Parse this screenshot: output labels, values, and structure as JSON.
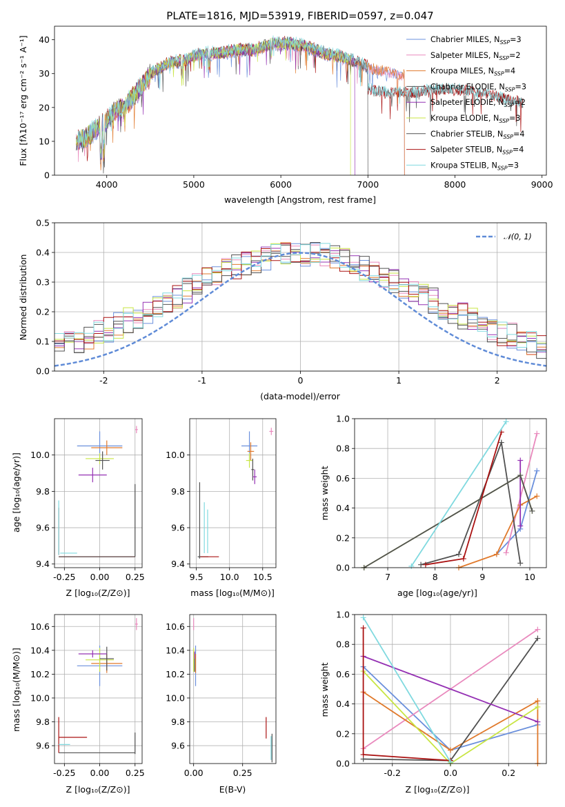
{
  "colors": [
    "#6a8fdc",
    "#e989bd",
    "#e0792b",
    "#505050",
    "#9430b3",
    "#c8e542",
    "#505050",
    "#aa1111",
    "#7fd9df"
  ],
  "spectrum": {
    "title": "PLATE=1816, MJD=53919, FIBERID=0597, z=0.047",
    "xlabel": "wavelength [Angstrom, rest frame]",
    "ylabel": "Flux [fλ10⁻¹⁷ erg cm⁻² s⁻¹ A⁻¹]"
  },
  "legend1": [
    {
      "name": "Chabrier MILES",
      "n": "3"
    },
    {
      "name": "Salpeter MILES",
      "n": "2"
    },
    {
      "name": "Kroupa MILES",
      "n": "4"
    },
    {
      "name": "Chabrier ELODIE",
      "n": "3"
    },
    {
      "name": "Salpeter ELODIE",
      "n": "2"
    },
    {
      "name": "Kroupa ELODIE",
      "n": "3"
    },
    {
      "name": "Chabrier STELIB",
      "n": "4"
    },
    {
      "name": "Salpeter STELIB",
      "n": "4"
    },
    {
      "name": "Kroupa STELIB",
      "n": "3"
    }
  ],
  "residuals": {
    "xlabel": "(data-model)/error",
    "ylabel": "Normed distribution",
    "gauss_label": "𝒩(0, 1)"
  },
  "panel_labels": {
    "age": "age  [log₁₀(age/yr)]",
    "mass": "mass [log₁₀(M/M⊙)]",
    "Z": "Z [log₁₀(Z/Z⊙)]",
    "massw": "mass weight",
    "ebv": "E(B-V)"
  },
  "chart_data": [
    {
      "type": "line",
      "title": "PLATE=1816, MJD=53919, FIBERID=0597, z=0.047",
      "xlabel": "wavelength [Angstrom, rest frame]",
      "ylabel": "Flux [fλ10⁻¹⁷ erg cm⁻² s⁻¹ A⁻¹]",
      "xlim": [
        3400,
        9050
      ],
      "ylim": [
        0,
        44
      ],
      "xticks": [
        4000,
        5000,
        6000,
        7000,
        8000,
        9000
      ],
      "yticks": [
        0,
        10,
        20,
        30,
        40
      ],
      "continuum": {
        "x": [
          3650,
          3750,
          3900,
          4000,
          4100,
          4200,
          4300,
          4400,
          4500,
          4700,
          4900,
          5100,
          5300,
          5500,
          5700,
          5900,
          6100,
          6300,
          6500,
          6700,
          6900,
          7000,
          7200,
          7400
        ],
        "y": [
          10,
          11,
          14,
          16,
          19,
          20,
          23,
          26,
          30,
          33,
          34,
          36,
          36,
          37,
          37,
          39,
          39,
          38,
          36,
          35,
          33,
          32,
          31,
          30
        ]
      },
      "cutoffs": {
        "Kroupa ELODIE": 6800,
        "Chabrier ELODIE": 7000,
        "MILES": 7420
      },
      "stelib_tail": {
        "x": [
          7000,
          7200,
          7500,
          7800,
          8000,
          8300,
          8600,
          8780
        ],
        "y": [
          25,
          24,
          24,
          25,
          25,
          24,
          22,
          21
        ]
      },
      "series": [
        {
          "name": "Chabrier MILES, N_SSP=3"
        },
        {
          "name": "Salpeter MILES, N_SSP=2"
        },
        {
          "name": "Kroupa MILES, N_SSP=4"
        },
        {
          "name": "Chabrier ELODIE, N_SSP=3"
        },
        {
          "name": "Salpeter ELODIE, N_SSP=2"
        },
        {
          "name": "Kroupa ELODIE, N_SSP=3"
        },
        {
          "name": "Chabrier STELIB, N_SSP=4"
        },
        {
          "name": "Salpeter STELIB, N_SSP=4"
        },
        {
          "name": "Kroupa STELIB, N_SSP=3"
        }
      ]
    },
    {
      "type": "area",
      "xlabel": "(data-model)/error",
      "ylabel": "Normed distribution",
      "xlim": [
        -2.5,
        2.5
      ],
      "ylim": [
        0,
        0.5
      ],
      "xticks": [
        -2,
        -1,
        0,
        1,
        2
      ],
      "yticks": [
        0.0,
        0.1,
        0.2,
        0.3,
        0.4,
        0.5
      ],
      "bins": {
        "start": -2.5,
        "width": 0.1,
        "count": 50
      },
      "gaussian": {
        "name": "N(0,1)",
        "mean": 0,
        "sigma": 1
      }
    },
    {
      "type": "scatter",
      "xlabel": "Z [log₁₀(Z/Z⊙)]",
      "ylabel": "age  [log₁₀(age/yr)]",
      "xlim": [
        -0.32,
        0.3
      ],
      "ylim": [
        9.38,
        10.2
      ],
      "xticks": [
        -0.25,
        0.0,
        0.25
      ],
      "yticks": [
        9.4,
        9.6,
        9.8,
        10.0
      ],
      "points": [
        {
          "x": 0.0,
          "xe": 0.16,
          "y": 10.05,
          "ye": 0.08,
          "s": 0
        },
        {
          "x": 0.05,
          "xe": 0.11,
          "y": 10.04,
          "ye": 0.04,
          "s": 2
        },
        {
          "x": 0.0,
          "xe": 0.1,
          "y": 9.98,
          "ye": 0.03,
          "s": 5
        },
        {
          "x": 0.02,
          "xe": 0.05,
          "y": 9.97,
          "ye": 0.05,
          "s": 3
        },
        {
          "x": -0.05,
          "xe": 0.1,
          "y": 9.89,
          "ye": 0.04,
          "s": 4
        },
        {
          "x": 0.26,
          "xe": 0.01,
          "y": 10.14,
          "ye": 0.02,
          "s": 1
        },
        {
          "x": -0.02,
          "xe": 0.27,
          "y": 9.44,
          "ye": 0.0,
          "s": 7
        },
        {
          "x": 0.25,
          "xe": 0.0,
          "y": 9.64,
          "ye": 0.2,
          "s": 6
        },
        {
          "x": -0.29,
          "xe": 0.0,
          "y": 9.58,
          "ye": 0.13,
          "s": 7
        },
        {
          "x": -0.22,
          "xe": 0.06,
          "y": 9.46,
          "ye": 0.0,
          "s": 8
        },
        {
          "x": -0.29,
          "xe": 0.0,
          "y": 9.6,
          "ye": 0.15,
          "s": 8
        },
        {
          "x": -0.02,
          "xe": 0.27,
          "y": 9.44,
          "ye": 0.0,
          "s": 3
        }
      ]
    },
    {
      "type": "scatter",
      "xlabel": "mass [log₁₀(M/M⊙)]",
      "xlim": [
        9.4,
        10.7
      ],
      "ylim": [
        9.38,
        10.2
      ],
      "xticks": [
        9.5,
        10.0,
        10.5
      ],
      "yticks": [
        9.4,
        9.6,
        9.8,
        10.0
      ],
      "points": [
        {
          "x": 10.3,
          "xe": 0.12,
          "y": 10.05,
          "ye": 0.08,
          "s": 0
        },
        {
          "x": 10.32,
          "xe": 0.05,
          "y": 10.02,
          "ye": 0.05,
          "s": 2
        },
        {
          "x": 10.3,
          "xe": 0.05,
          "y": 9.97,
          "ye": 0.04,
          "s": 5
        },
        {
          "x": 10.35,
          "xe": 0.02,
          "y": 9.92,
          "ye": 0.06,
          "s": 3
        },
        {
          "x": 10.38,
          "xe": 0.03,
          "y": 9.88,
          "ye": 0.04,
          "s": 4
        },
        {
          "x": 10.63,
          "xe": 0.03,
          "y": 10.13,
          "ye": 0.02,
          "s": 1
        },
        {
          "x": 9.55,
          "xe": 0.0,
          "y": 9.64,
          "ye": 0.21,
          "s": 3
        },
        {
          "x": 9.6,
          "xe": 0.08,
          "y": 9.44,
          "ye": 0.0,
          "s": 6
        },
        {
          "x": 9.67,
          "xe": 0.0,
          "y": 9.58,
          "ye": 0.12,
          "s": 8
        },
        {
          "x": 9.7,
          "xe": 0.14,
          "y": 9.44,
          "ye": 0.0,
          "s": 7
        },
        {
          "x": 9.62,
          "xe": 0.0,
          "y": 9.6,
          "ye": 0.14,
          "s": 8
        }
      ]
    },
    {
      "type": "line",
      "xlabel": "age  [log₁₀(age/yr)]",
      "ylabel": "mass weight",
      "xlim": [
        6.3,
        10.35
      ],
      "ylim": [
        0,
        1.0
      ],
      "xticks": [
        7,
        8,
        9,
        10
      ],
      "yticks": [
        0.0,
        0.2,
        0.4,
        0.6,
        0.8,
        1.0
      ],
      "series": [
        {
          "s": 0,
          "x": [
            9.3,
            9.8,
            10.15
          ],
          "y": [
            0.09,
            0.26,
            0.65
          ]
        },
        {
          "s": 1,
          "x": [
            9.5,
            10.15
          ],
          "y": [
            0.1,
            0.9
          ]
        },
        {
          "s": 2,
          "x": [
            8.5,
            9.3,
            9.8,
            10.15
          ],
          "y": [
            0.0,
            0.09,
            0.42,
            0.48
          ]
        },
        {
          "s": 3,
          "x": [
            7.7,
            8.5,
            9.4,
            9.8
          ],
          "y": [
            0.02,
            0.09,
            0.84,
            0.03
          ]
        },
        {
          "s": 4,
          "x": [
            9.8,
            9.8
          ],
          "y": [
            0.28,
            0.72
          ]
        },
        {
          "s": 5,
          "x": [
            6.5,
            9.8,
            10.05
          ],
          "y": [
            0.0,
            0.62,
            0.38
          ]
        },
        {
          "s": 6,
          "x": [
            6.5,
            9.8,
            10.05
          ],
          "y": [
            0.0,
            0.62,
            0.38
          ]
        },
        {
          "s": 7,
          "x": [
            7.8,
            8.6,
            9.4
          ],
          "y": [
            0.02,
            0.06,
            0.91
          ]
        },
        {
          "s": 8,
          "x": [
            7.5,
            9.5
          ],
          "y": [
            0.01,
            0.98
          ]
        }
      ]
    },
    {
      "type": "scatter",
      "xlabel": "Z [log₁₀(Z/Z⊙)]",
      "ylabel": "mass [log₁₀(M/M⊙)]",
      "xlim": [
        -0.32,
        0.3
      ],
      "ylim": [
        9.45,
        10.7
      ],
      "xticks": [
        -0.25,
        0.0,
        0.25
      ],
      "yticks": [
        9.6,
        9.8,
        10.0,
        10.2,
        10.4,
        10.6
      ],
      "points": [
        {
          "x": 0.0,
          "xe": 0.16,
          "y": 10.27,
          "ye": 0.17,
          "s": 0
        },
        {
          "x": 0.05,
          "xe": 0.11,
          "y": 10.29,
          "ye": 0.08,
          "s": 2
        },
        {
          "x": 0.0,
          "xe": 0.1,
          "y": 10.32,
          "ye": 0.1,
          "s": 5
        },
        {
          "x": 0.05,
          "xe": 0.05,
          "y": 10.33,
          "ye": 0.1,
          "s": 3
        },
        {
          "x": -0.05,
          "xe": 0.1,
          "y": 10.37,
          "ye": 0.03,
          "s": 4
        },
        {
          "x": 0.26,
          "xe": 0.01,
          "y": 10.62,
          "ye": 0.05,
          "s": 1
        },
        {
          "x": -0.02,
          "xe": 0.27,
          "y": 9.54,
          "ye": 0.0,
          "s": 6
        },
        {
          "x": 0.25,
          "xe": 0.0,
          "y": 9.62,
          "ye": 0.09,
          "s": 6
        },
        {
          "x": -0.29,
          "xe": 0.0,
          "y": 9.69,
          "ye": 0.15,
          "s": 7
        },
        {
          "x": -0.19,
          "xe": 0.1,
          "y": 9.67,
          "ye": 0.0,
          "s": 7
        },
        {
          "x": -0.25,
          "xe": 0.04,
          "y": 9.61,
          "ye": 0.0,
          "s": 8
        }
      ]
    },
    {
      "type": "scatter",
      "xlabel": "E(B-V)",
      "xlim": [
        -0.02,
        0.42
      ],
      "ylim": [
        9.45,
        10.7
      ],
      "xticks": [
        0.0,
        0.25
      ],
      "yticks": [
        9.6,
        9.8,
        10.0,
        10.2,
        10.4,
        10.6
      ],
      "points": [
        {
          "x": 0.01,
          "y": 10.27,
          "ye": 0.17,
          "s": 0
        },
        {
          "x": 0.01,
          "y": 10.29,
          "ye": 0.08,
          "s": 2
        },
        {
          "x": 0.0,
          "y": 10.32,
          "ye": 0.1,
          "s": 5
        },
        {
          "x": 0.005,
          "y": 10.3,
          "ye": 0.08,
          "s": 3
        },
        {
          "x": 0.005,
          "y": 10.36,
          "ye": 0.03,
          "s": 4
        },
        {
          "x": 0.0,
          "y": 10.62,
          "ye": 0.05,
          "s": 1
        },
        {
          "x": 0.37,
          "y": 9.75,
          "ye": 0.09,
          "s": 7
        },
        {
          "x": 0.395,
          "y": 9.58,
          "ye": 0.1,
          "s": 8
        },
        {
          "x": 0.4,
          "y": 9.58,
          "ye": 0.12,
          "s": 6
        }
      ]
    },
    {
      "type": "line",
      "xlabel": "Z [log₁₀(Z/Z⊙)]",
      "ylabel": "mass weight",
      "xlim": [
        -0.33,
        0.33
      ],
      "ylim": [
        0,
        1.0
      ],
      "xticks": [
        -0.2,
        0.0,
        0.2
      ],
      "yticks": [
        0.0,
        0.2,
        0.4,
        0.6,
        0.8,
        1.0
      ],
      "series": [
        {
          "s": 0,
          "x": [
            -0.3,
            0.0,
            0.3
          ],
          "y": [
            0.65,
            0.09,
            0.26
          ]
        },
        {
          "s": 1,
          "x": [
            -0.3,
            0.3
          ],
          "y": [
            0.1,
            0.9
          ]
        },
        {
          "s": 2,
          "x": [
            -0.3,
            0.0,
            0.3,
            0.3
          ],
          "y": [
            0.48,
            0.09,
            0.42,
            0.0
          ]
        },
        {
          "s": 3,
          "x": [
            -0.3,
            0.0,
            0.3
          ],
          "y": [
            0.03,
            0.02,
            0.84
          ]
        },
        {
          "s": 4,
          "x": [
            -0.3,
            0.3
          ],
          "y": [
            0.72,
            0.28
          ]
        },
        {
          "s": 5,
          "x": [
            -0.3,
            0.0,
            0.3
          ],
          "y": [
            0.62,
            0.0,
            0.38
          ]
        },
        {
          "s": 7,
          "x": [
            -0.3,
            -0.3,
            0.0
          ],
          "y": [
            0.91,
            0.06,
            0.02
          ]
        },
        {
          "s": 8,
          "x": [
            -0.3,
            0.0
          ],
          "y": [
            0.98,
            0.01
          ]
        }
      ]
    }
  ]
}
